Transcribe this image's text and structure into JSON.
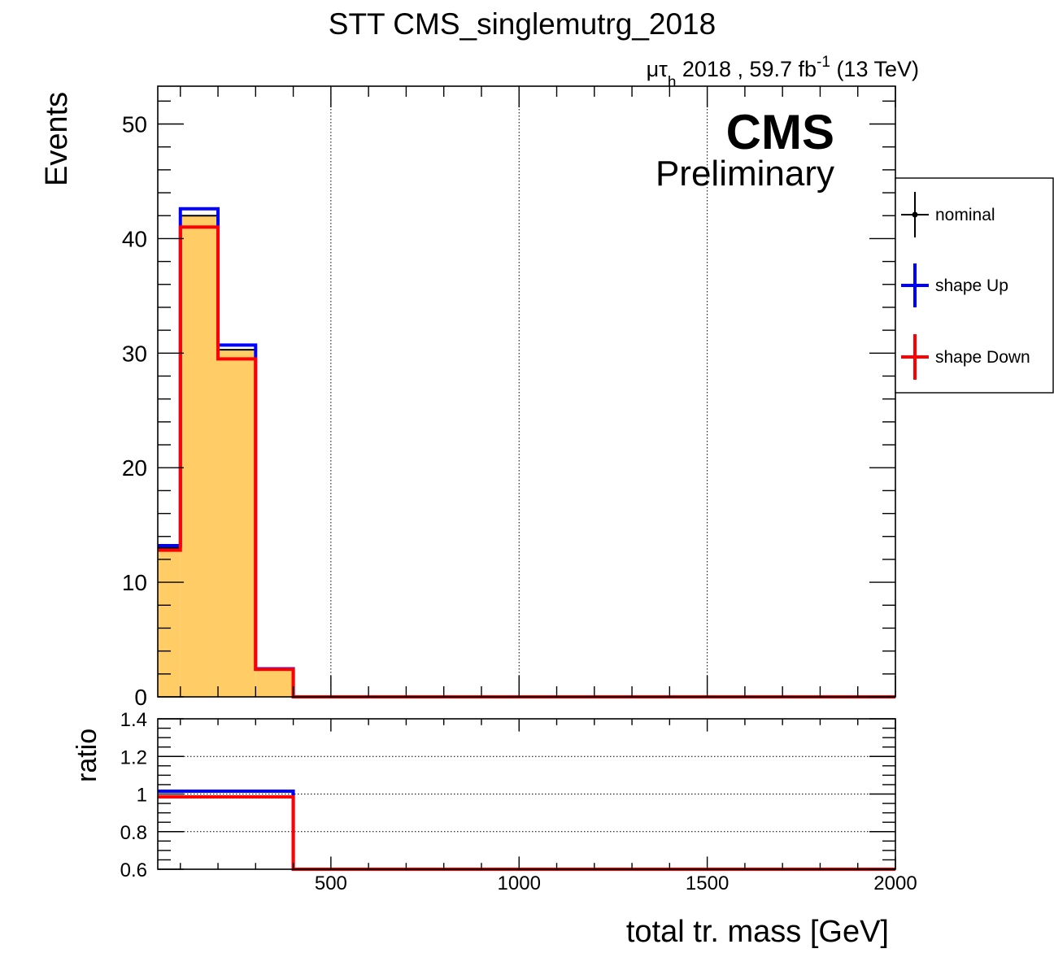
{
  "chart_data": [
    {
      "type": "histogram",
      "title": "STT CMS_singlemutrg_2018",
      "lumi_label": {
        "channel_main": "μτ",
        "channel_sub": "h",
        "text": " 2018 , 59.7 fb",
        "exponent": "-1",
        "suffix": " (13 TeV)"
      },
      "cms_label": "CMS",
      "cms_sublabel": "Preliminary",
      "ylabel": "Events",
      "xlabel": "total tr. mass [GeV]",
      "xlim": [
        40,
        2000
      ],
      "ylim": [
        0,
        53.3
      ],
      "yticks_major": [
        0,
        10,
        20,
        30,
        40,
        50
      ],
      "xgrid": [
        500,
        1000,
        1500
      ],
      "bin_edges": [
        40,
        100,
        200,
        300,
        400,
        2000
      ],
      "series": [
        {
          "name": "nominal",
          "role": "stacked-fill",
          "fill": "#ffcc66",
          "line": "#000000",
          "values": [
            13.0,
            42.0,
            30.3,
            2.5,
            0
          ]
        },
        {
          "name": "shape Up",
          "color": "#0000ff",
          "values": [
            13.2,
            42.6,
            30.7,
            2.45,
            0
          ]
        },
        {
          "name": "shape Down",
          "color": "#ff0000",
          "values": [
            12.8,
            41.0,
            29.5,
            2.4,
            0
          ]
        }
      ],
      "legend": [
        {
          "label": "nominal",
          "color": "#000000",
          "marker": "point"
        },
        {
          "label": "shape Up",
          "color": "#0000ff",
          "marker": "cross"
        },
        {
          "label": "shape Down",
          "color": "#ff0000",
          "marker": "cross"
        }
      ],
      "legend_position": "right, outside"
    },
    {
      "type": "step",
      "ylabel": "ratio",
      "xlabel": "total tr. mass [GeV]",
      "xlim": [
        40,
        2000
      ],
      "ylim": [
        0.6,
        1.4
      ],
      "yticks": [
        0.6,
        0.8,
        1,
        1.2,
        1.4
      ],
      "ytick_labels": [
        "0.6",
        "0.8",
        "1",
        "1.2",
        "1.4"
      ],
      "xticks": [
        500,
        1000,
        1500,
        2000
      ],
      "xtick_labels": [
        "500",
        "1000",
        "1500",
        "2000"
      ],
      "hgrid": [
        0.8,
        1.0,
        1.2
      ],
      "bin_edges": [
        40,
        400,
        2000
      ],
      "series": [
        {
          "name": "shape Up",
          "color": "#0000ff",
          "values": [
            1.015,
            0.6
          ]
        },
        {
          "name": "shape Down",
          "color": "#ff0000",
          "values": [
            0.985,
            0.6
          ]
        }
      ]
    }
  ]
}
